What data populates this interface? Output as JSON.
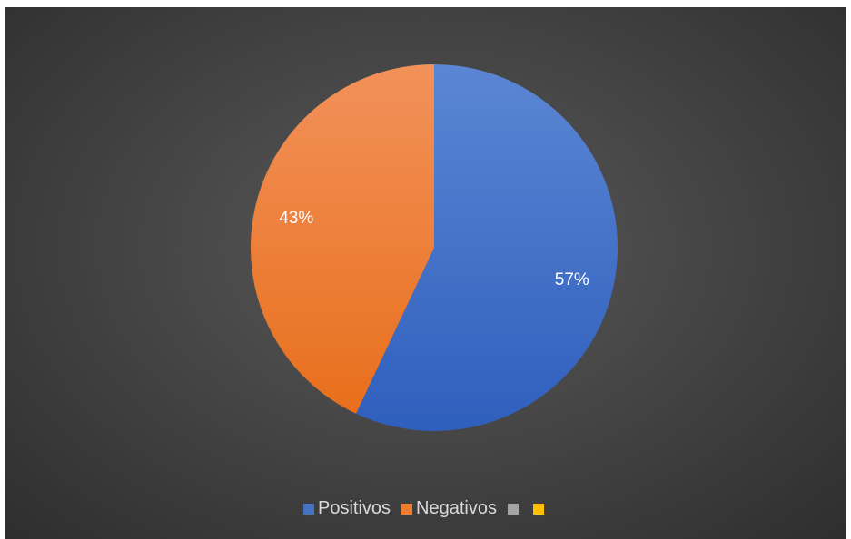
{
  "chart_data": {
    "type": "pie",
    "title": "",
    "slices": [
      {
        "label": "Positivos",
        "value": 57,
        "display": "57%",
        "color": "#4472c4"
      },
      {
        "label": "Negativos",
        "value": 43,
        "display": "43%",
        "color": "#ed7d31"
      }
    ],
    "legend": {
      "placement": "bottom",
      "entries": [
        {
          "label": "Positivos",
          "color": "#4472c4"
        },
        {
          "label": "Negativos",
          "color": "#ed7d31"
        },
        {
          "label": "",
          "color": "#a5a5a5"
        },
        {
          "label": "",
          "color": "#ffc000"
        }
      ]
    }
  }
}
